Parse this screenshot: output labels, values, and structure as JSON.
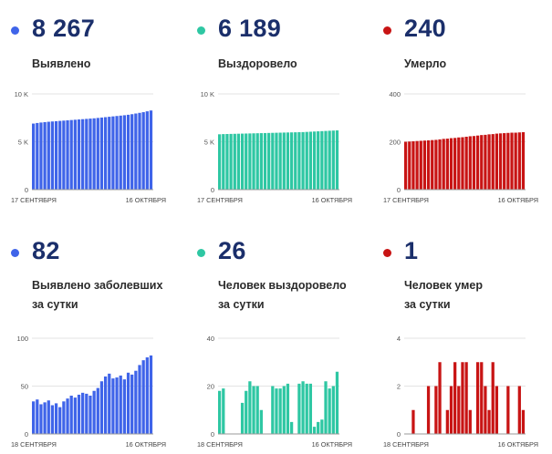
{
  "panels": [
    {
      "id": "cumulative-cases",
      "value": "8 267",
      "label_lines": [
        "Выявлено"
      ],
      "color": "#3f64e9",
      "chart_data": {
        "type": "bar",
        "ylim": [
          0,
          10000
        ],
        "yticks": [
          {
            "v": 0,
            "t": "0"
          },
          {
            "v": 5000,
            "t": "5 K"
          },
          {
            "v": 10000,
            "t": "10 K"
          }
        ],
        "xlabel_start": "17 СЕНТЯБРЯ",
        "xlabel_end": "16 ОКТЯБРЯ",
        "values": [
          6900,
          6960,
          7010,
          7050,
          7090,
          7120,
          7150,
          7180,
          7210,
          7240,
          7270,
          7300,
          7330,
          7360,
          7390,
          7420,
          7450,
          7490,
          7530,
          7570,
          7610,
          7650,
          7690,
          7730,
          7770,
          7820,
          7880,
          7950,
          8020,
          8090,
          8180,
          8267
        ]
      }
    },
    {
      "id": "cumulative-recovered",
      "value": "6 189",
      "label_lines": [
        "Выздоровело"
      ],
      "color": "#2ec7a3",
      "chart_data": {
        "type": "bar",
        "ylim": [
          0,
          10000
        ],
        "yticks": [
          {
            "v": 0,
            "t": "0"
          },
          {
            "v": 5000,
            "t": "5 K"
          },
          {
            "v": 10000,
            "t": "10 K"
          }
        ],
        "xlabel_start": "17 СЕНТЯБРЯ",
        "xlabel_end": "16 ОКТЯБРЯ",
        "values": [
          5780,
          5800,
          5810,
          5820,
          5830,
          5840,
          5850,
          5860,
          5870,
          5880,
          5890,
          5900,
          5910,
          5920,
          5930,
          5940,
          5950,
          5960,
          5970,
          5980,
          5990,
          6000,
          6010,
          6030,
          6050,
          6070,
          6090,
          6110,
          6130,
          6150,
          6170,
          6189
        ]
      }
    },
    {
      "id": "cumulative-deaths",
      "value": "240",
      "label_lines": [
        "Умерло"
      ],
      "color": "#c81414",
      "chart_data": {
        "type": "bar",
        "ylim": [
          0,
          400
        ],
        "yticks": [
          {
            "v": 0,
            "t": "0"
          },
          {
            "v": 200,
            "t": "200"
          },
          {
            "v": 400,
            "t": "400"
          }
        ],
        "xlabel_start": "17 СЕНТЯБРЯ",
        "xlabel_end": "16 ОКТЯБРЯ",
        "values": [
          200,
          201,
          202,
          203,
          204,
          205,
          206,
          207,
          208,
          210,
          212,
          213,
          215,
          216,
          218,
          219,
          221,
          223,
          224,
          226,
          228,
          229,
          231,
          232,
          234,
          235,
          236,
          237,
          238,
          238,
          239,
          240
        ]
      }
    },
    {
      "id": "daily-cases",
      "value": "82",
      "label_lines": [
        "Выявлено заболевших",
        "за сутки"
      ],
      "color": "#3f64e9",
      "chart_data": {
        "type": "bar",
        "ylim": [
          0,
          100
        ],
        "yticks": [
          {
            "v": 0,
            "t": "0"
          },
          {
            "v": 50,
            "t": "50"
          },
          {
            "v": 100,
            "t": "100"
          }
        ],
        "xlabel_start": "18 СЕНТЯБРЯ",
        "xlabel_end": "16 ОКТЯБРЯ",
        "values": [
          34,
          36,
          31,
          33,
          35,
          30,
          32,
          28,
          34,
          37,
          40,
          38,
          41,
          43,
          42,
          40,
          45,
          48,
          55,
          60,
          63,
          58,
          59,
          61,
          57,
          64,
          62,
          66,
          72,
          77,
          80,
          82
        ]
      }
    },
    {
      "id": "daily-recovered",
      "value": "26",
      "label_lines": [
        "Человек выздоровело",
        "за сутки"
      ],
      "color": "#2ec7a3",
      "chart_data": {
        "type": "bar",
        "ylim": [
          0,
          40
        ],
        "yticks": [
          {
            "v": 0,
            "t": "0"
          },
          {
            "v": 20,
            "t": "20"
          },
          {
            "v": 40,
            "t": "40"
          }
        ],
        "xlabel_start": "18 СЕНТЯБРЯ",
        "xlabel_end": "16 ОКТЯБРЯ",
        "values": [
          18,
          19,
          0,
          0,
          0,
          0,
          13,
          18,
          22,
          20,
          20,
          10,
          0,
          0,
          20,
          19,
          19,
          20,
          21,
          5,
          0,
          21,
          22,
          21,
          21,
          3,
          5,
          6,
          22,
          19,
          20,
          26
        ]
      }
    },
    {
      "id": "daily-deaths",
      "value": "1",
      "label_lines": [
        "Человек умер",
        "за сутки"
      ],
      "color": "#c81414",
      "chart_data": {
        "type": "bar",
        "ylim": [
          0,
          4
        ],
        "yticks": [
          {
            "v": 0,
            "t": "0"
          },
          {
            "v": 2,
            "t": "2"
          },
          {
            "v": 4,
            "t": "4"
          }
        ],
        "xlabel_start": "18 СЕНТЯБРЯ",
        "xlabel_end": "16 ОКТЯБРЯ",
        "values": [
          0,
          0,
          1,
          0,
          0,
          0,
          2,
          0,
          2,
          3,
          0,
          1,
          2,
          3,
          2,
          3,
          3,
          1,
          0,
          3,
          3,
          2,
          1,
          3,
          2,
          0,
          0,
          2,
          0,
          0,
          2,
          1
        ]
      }
    }
  ]
}
